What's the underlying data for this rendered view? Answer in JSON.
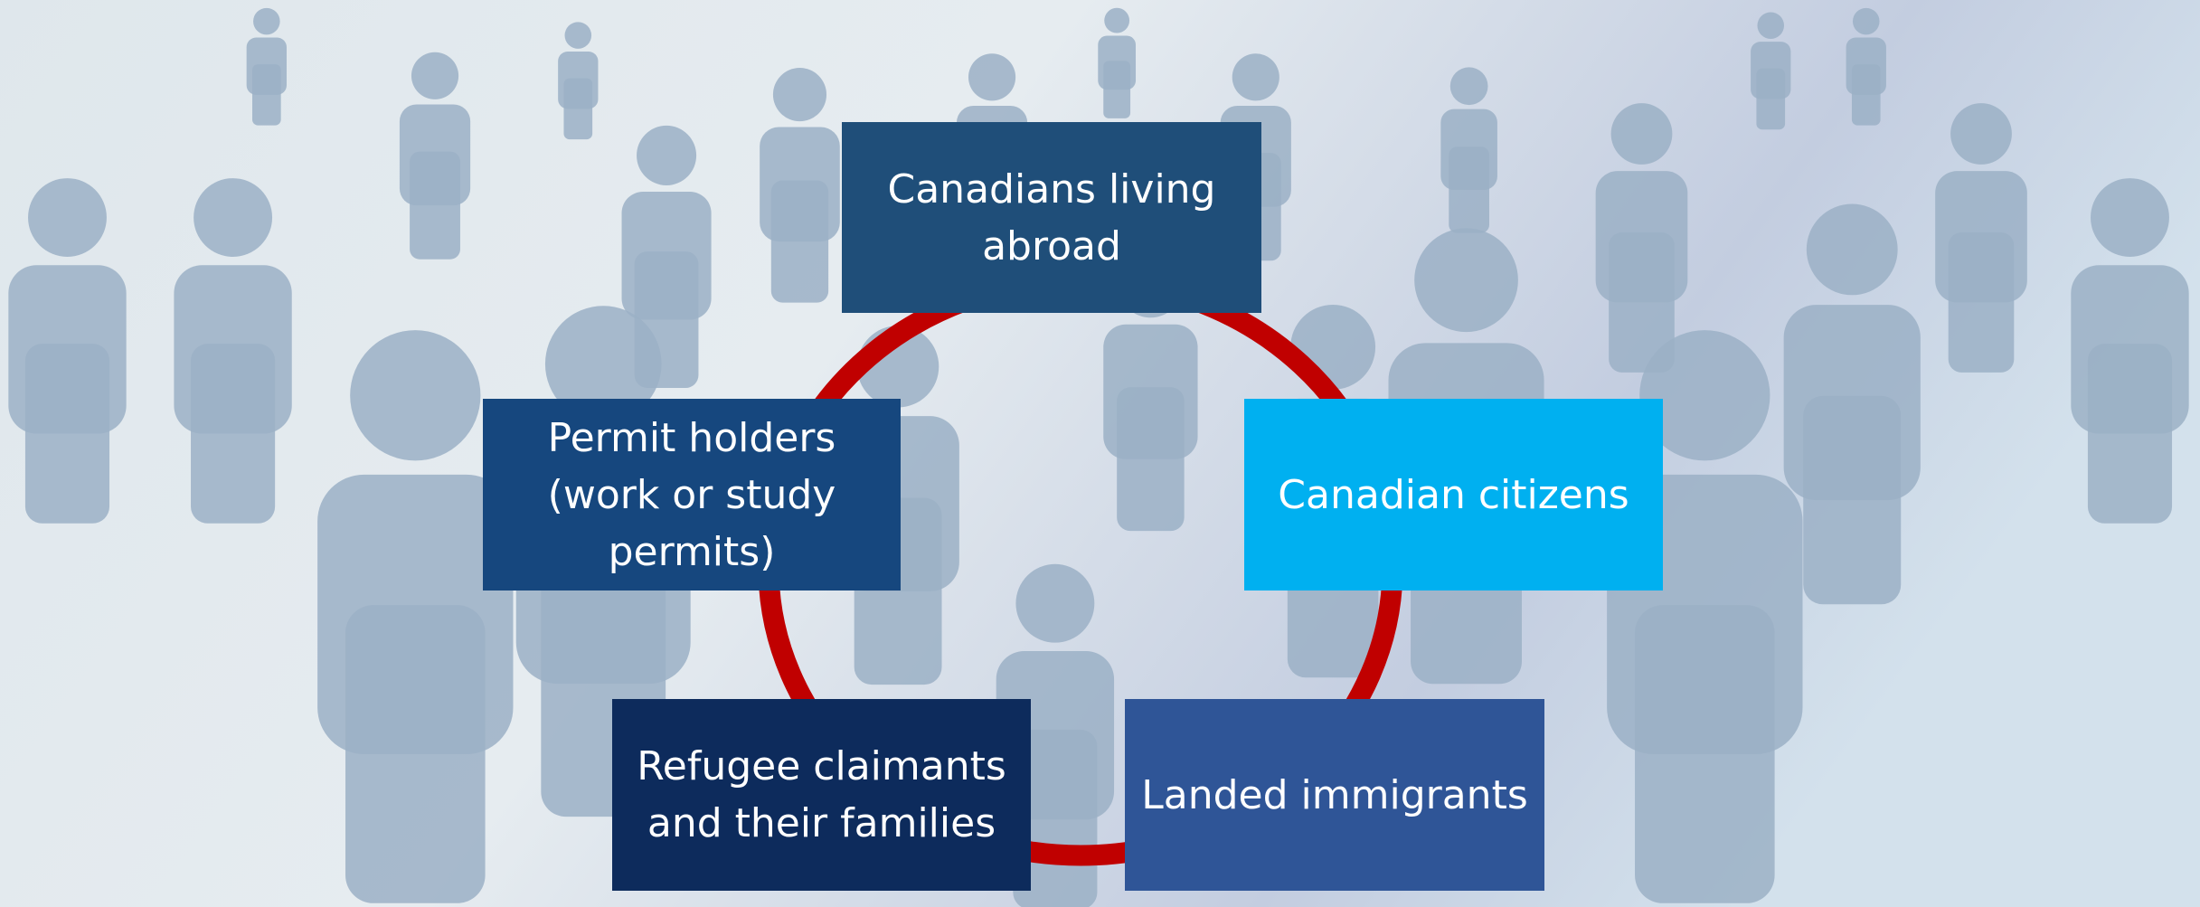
{
  "nodes": [
    {
      "lines": [
        "Canadians living",
        "abroad"
      ]
    },
    {
      "lines": [
        "Permit holders",
        "(work or study",
        "permits)"
      ]
    },
    {
      "lines": [
        "Canadian citizens"
      ]
    },
    {
      "lines": [
        "Refugee claimants",
        "and their families"
      ]
    },
    {
      "lines": [
        "Landed immigrants"
      ]
    }
  ]
}
